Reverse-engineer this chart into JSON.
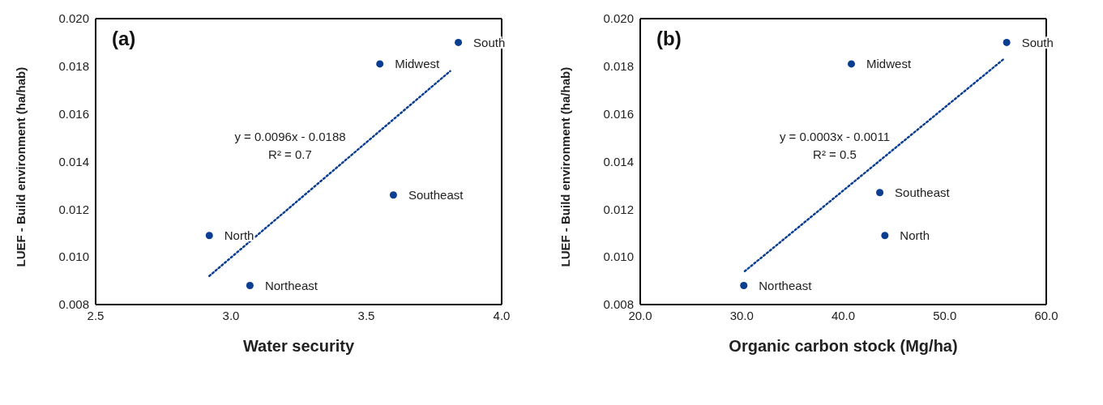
{
  "chart_data": [
    {
      "type": "scatter",
      "title": "(a)",
      "xlabel": "Water security",
      "ylabel": "LUEF - Build environment (ha/hab)",
      "xlim": [
        2.5,
        4.0
      ],
      "xticks": [
        {
          "value": 2.5,
          "label": "2.5"
        },
        {
          "value": 3.0,
          "label": "3.0"
        },
        {
          "value": 3.5,
          "label": "3.5"
        },
        {
          "value": 4.0,
          "label": "4.0"
        }
      ],
      "ylim": [
        0.008,
        0.02
      ],
      "yticks": [
        {
          "value": 0.008,
          "label": "0.008"
        },
        {
          "value": 0.01,
          "label": "0.010"
        },
        {
          "value": 0.012,
          "label": "0.012"
        },
        {
          "value": 0.014,
          "label": "0.014"
        },
        {
          "value": 0.016,
          "label": "0.016"
        },
        {
          "value": 0.018,
          "label": "0.018"
        },
        {
          "value": 0.02,
          "label": "0.020"
        }
      ],
      "grid": false,
      "legend": false,
      "marker": "circle",
      "annotations": [
        "y = 0.0096x - 0.0188",
        "R² = 0.7"
      ],
      "series": [
        {
          "name": "North",
          "color": "#0b3d91",
          "x": [
            2.92
          ],
          "values": [
            0.0109
          ]
        },
        {
          "name": "Northeast",
          "color": "#0b3d91",
          "x": [
            3.07
          ],
          "values": [
            0.0088
          ]
        },
        {
          "name": "Southeast",
          "color": "#0b3d91",
          "x": [
            3.6
          ],
          "values": [
            0.0126
          ]
        },
        {
          "name": "Midwest",
          "color": "#0b3d91",
          "x": [
            3.55
          ],
          "values": [
            0.0181
          ]
        },
        {
          "name": "South",
          "color": "#0b3d91",
          "x": [
            3.84
          ],
          "values": [
            0.019
          ]
        },
        {
          "type": "line",
          "color": "#0b3d91",
          "line_style": "dotted",
          "marker": "none",
          "x": [
            2.92,
            3.81
          ],
          "values": [
            0.0092,
            0.0178
          ]
        }
      ]
    },
    {
      "type": "scatter",
      "title": "(b)",
      "xlabel": "Organic carbon stock (Mg/ha)",
      "ylabel": "LUEF - Build environment (ha/hab)",
      "xlim": [
        20,
        60
      ],
      "xticks": [
        {
          "value": 20,
          "label": "20.0"
        },
        {
          "value": 30,
          "label": "30.0"
        },
        {
          "value": 40,
          "label": "40.0"
        },
        {
          "value": 50,
          "label": "50.0"
        },
        {
          "value": 60,
          "label": "60.0"
        }
      ],
      "ylim": [
        0.008,
        0.02
      ],
      "yticks": [
        {
          "value": 0.008,
          "label": "0.008"
        },
        {
          "value": 0.01,
          "label": "0.010"
        },
        {
          "value": 0.012,
          "label": "0.012"
        },
        {
          "value": 0.014,
          "label": "0.014"
        },
        {
          "value": 0.016,
          "label": "0.016"
        },
        {
          "value": 0.018,
          "label": "0.018"
        },
        {
          "value": 0.02,
          "label": "0.020"
        }
      ],
      "grid": false,
      "legend": false,
      "marker": "circle",
      "annotations": [
        "y = 0.0003x - 0.0011",
        "R² = 0.5"
      ],
      "series": [
        {
          "name": "Northeast",
          "color": "#0b3d91",
          "x": [
            30.2
          ],
          "values": [
            0.0088
          ]
        },
        {
          "name": "Midwest",
          "color": "#0b3d91",
          "x": [
            40.8
          ],
          "values": [
            0.0181
          ]
        },
        {
          "name": "Southeast",
          "color": "#0b3d91",
          "x": [
            43.6
          ],
          "values": [
            0.0127
          ]
        },
        {
          "name": "North",
          "color": "#0b3d91",
          "x": [
            44.1
          ],
          "values": [
            0.0109
          ]
        },
        {
          "name": "South",
          "color": "#0b3d91",
          "x": [
            56.1
          ],
          "values": [
            0.019
          ]
        },
        {
          "type": "line",
          "color": "#0b3d91",
          "line_style": "dotted",
          "marker": "none",
          "x": [
            30.3,
            55.8
          ],
          "values": [
            0.0094,
            0.0183
          ]
        }
      ]
    }
  ]
}
